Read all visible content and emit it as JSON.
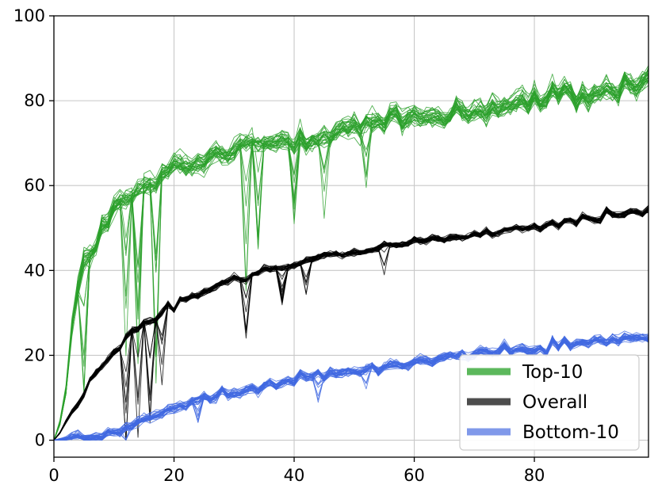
{
  "chart_data": {
    "type": "line",
    "title": "",
    "xlabel": "",
    "ylabel": "",
    "xlim": [
      0,
      99
    ],
    "ylim": [
      -4,
      100
    ],
    "grid": true,
    "legend_position": "bottom-right",
    "x_ticks": [
      0,
      20,
      40,
      60,
      80
    ],
    "y_ticks": [
      0,
      20,
      40,
      60,
      80,
      100
    ],
    "x_tick_labels": [
      "0",
      "20",
      "40",
      "60",
      "80"
    ],
    "y_tick_labels": [
      "0",
      "20",
      "40",
      "60",
      "80",
      "100"
    ],
    "runs_per_series": 30,
    "x": [
      0,
      1,
      2,
      3,
      4,
      5,
      6,
      7,
      8,
      9,
      10,
      11,
      12,
      13,
      14,
      15,
      16,
      17,
      18,
      19,
      20,
      21,
      22,
      23,
      24,
      25,
      26,
      27,
      28,
      29,
      30,
      31,
      32,
      33,
      34,
      35,
      36,
      37,
      38,
      39,
      40,
      41,
      42,
      43,
      44,
      45,
      46,
      47,
      48,
      49,
      50,
      51,
      52,
      53,
      54,
      55,
      56,
      57,
      58,
      59,
      60,
      61,
      62,
      63,
      64,
      65,
      66,
      67,
      68,
      69,
      70,
      71,
      72,
      73,
      74,
      75,
      76,
      77,
      78,
      79,
      80,
      81,
      82,
      83,
      84,
      85,
      86,
      87,
      88,
      89,
      90,
      91,
      92,
      93,
      94,
      95,
      96,
      97,
      98,
      99
    ],
    "series": [
      {
        "name": "Top-10",
        "color": "#2ca02c",
        "legend_color": "#5cb85c",
        "values": [
          0,
          4,
          11,
          26,
          34,
          41,
          44,
          47,
          50,
          52,
          53,
          55,
          56,
          57,
          58,
          59,
          60,
          61,
          62,
          62.5,
          63,
          63.5,
          64,
          64.5,
          65,
          65.5,
          66,
          66.5,
          67,
          67.5,
          68,
          68.5,
          69,
          69.2,
          69.5,
          69.8,
          70,
          70.3,
          70.6,
          70.9,
          71,
          71.3,
          71.6,
          71.9,
          72.1,
          72.4,
          72.6,
          72.9,
          73.1,
          73.3,
          73.5,
          73.8,
          74,
          74.2,
          74.4,
          74.6,
          74.8,
          75,
          75.2,
          75.4,
          75.6,
          75.8,
          76,
          76.2,
          76.4,
          76.6,
          76.8,
          77,
          77.2,
          77.4,
          77.6,
          77.8,
          78,
          78.2,
          78.4,
          78.6,
          78.8,
          79,
          79.2,
          79.4,
          79.6,
          79.8,
          80,
          80.2,
          80.4,
          80.6,
          80.8,
          81,
          81.2,
          81.4,
          81.6,
          81.8,
          82,
          82.3,
          82.6,
          83,
          83.4,
          83.8,
          84.2,
          84.6
        ],
        "spread": 4,
        "noise": 2.6,
        "dips": [
          [
            5,
            12
          ],
          [
            12,
            14
          ],
          [
            14,
            17
          ],
          [
            17,
            18
          ],
          [
            32,
            15
          ],
          [
            34,
            10
          ],
          [
            40,
            7
          ],
          [
            45,
            7
          ],
          [
            52,
            6
          ]
        ]
      },
      {
        "name": "Overall",
        "color": "#000000",
        "legend_color": "#4d4d4d",
        "values": [
          0,
          2,
          4.5,
          7,
          9.5,
          12,
          14,
          16,
          18,
          19.5,
          21,
          22.5,
          24,
          25.2,
          26.4,
          27.5,
          28.5,
          29.4,
          30.3,
          31.1,
          31.9,
          32.6,
          33.3,
          34,
          34.6,
          35.2,
          35.8,
          36.4,
          36.9,
          37.4,
          37.9,
          38.3,
          38.7,
          39.1,
          39.5,
          39.9,
          40.2,
          40.5,
          40.8,
          41.1,
          41.4,
          41.7,
          42,
          42.3,
          42.6,
          42.9,
          43.2,
          43.5,
          43.8,
          44,
          44.3,
          44.5,
          44.8,
          45,
          45.2,
          45.4,
          45.7,
          45.9,
          46.1,
          46.3,
          46.5,
          46.8,
          47,
          47.2,
          47.4,
          47.6,
          47.8,
          48,
          48.2,
          48.4,
          48.6,
          48.8,
          49,
          49.2,
          49.4,
          49.6,
          49.8,
          50,
          50.2,
          50.4,
          50.6,
          50.8,
          51,
          51.2,
          51.4,
          51.6,
          51.8,
          52,
          52.2,
          52.4,
          52.6,
          52.8,
          53,
          53.2,
          53.4,
          53.6,
          53.8,
          54,
          54.2,
          54.5
        ],
        "spread": 1.2,
        "noise": 1.1,
        "dips": [
          [
            12,
            12
          ],
          [
            14,
            10
          ],
          [
            16,
            10
          ],
          [
            18,
            7
          ],
          [
            32,
            5
          ],
          [
            38,
            3
          ],
          [
            42,
            3
          ],
          [
            55,
            3
          ]
        ]
      },
      {
        "name": "Bottom-10",
        "color": "#4169e1",
        "legend_color": "#8099ea",
        "values": [
          0,
          0,
          0,
          0,
          0.2,
          0.5,
          0.8,
          1.2,
          1.6,
          2,
          2.5,
          3,
          3.5,
          4,
          4.5,
          5,
          5.5,
          6,
          6.5,
          7,
          7.4,
          7.8,
          8.2,
          8.6,
          9,
          9.4,
          9.8,
          10.2,
          10.6,
          11,
          11.3,
          11.6,
          11.9,
          12.2,
          12.5,
          12.8,
          13.1,
          13.4,
          13.7,
          14,
          14.3,
          14.6,
          14.9,
          15.1,
          15.3,
          15.5,
          15.7,
          15.9,
          16.1,
          16.3,
          16.5,
          16.7,
          16.9,
          17.1,
          17.3,
          17.5,
          17.7,
          17.9,
          18.1,
          18.3,
          18.5,
          18.7,
          18.9,
          19.1,
          19.3,
          19.5,
          19.6,
          19.8,
          20,
          20.2,
          20.3,
          20.5,
          20.7,
          20.8,
          21,
          21.1,
          21.3,
          21.4,
          21.6,
          21.7,
          21.8,
          22,
          22.1,
          22.2,
          22.4,
          22.5,
          22.6,
          22.8,
          22.9,
          23,
          23.1,
          23.3,
          23.4,
          23.5,
          23.6,
          23.7,
          23.8,
          23.9,
          24,
          24.1
        ],
        "spread": 1.6,
        "noise": 1.4,
        "dips": [
          [
            12,
            2
          ],
          [
            24,
            2
          ],
          [
            44,
            3
          ],
          [
            52,
            3
          ]
        ]
      }
    ]
  }
}
